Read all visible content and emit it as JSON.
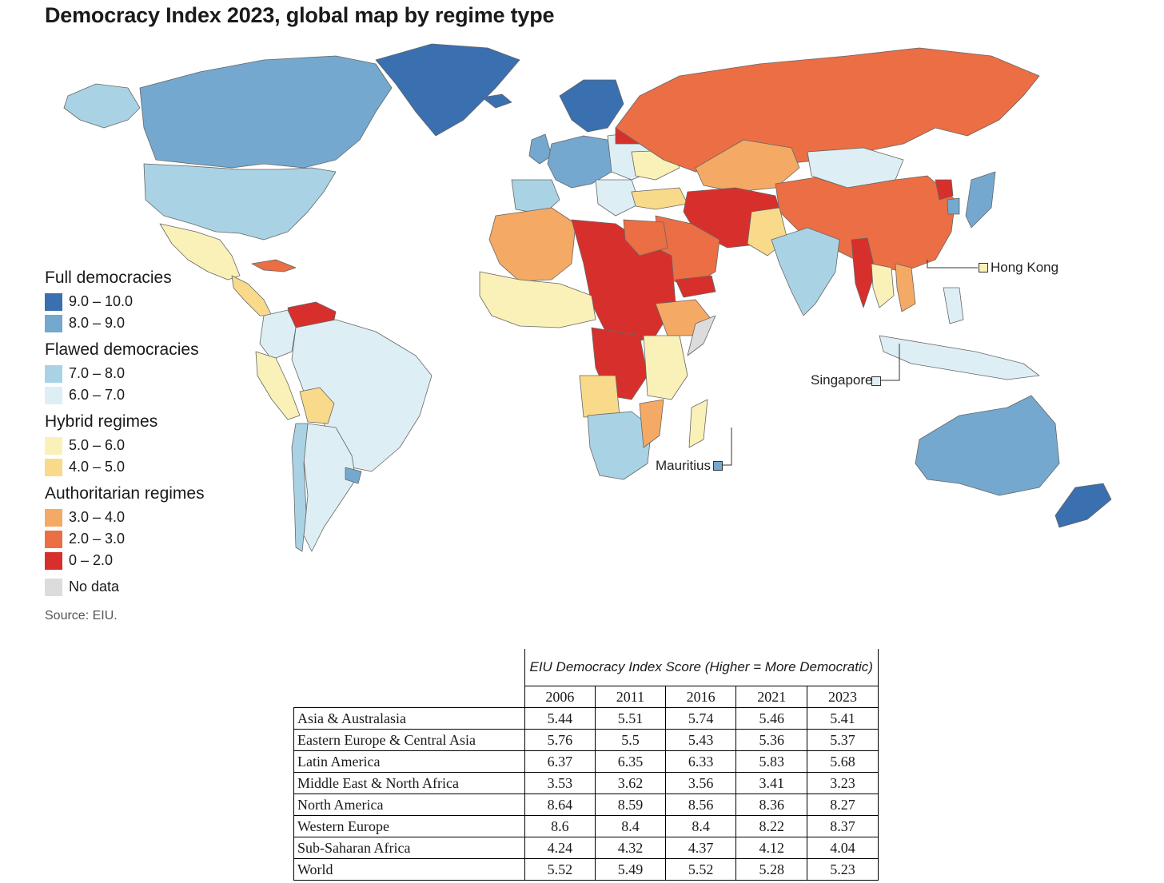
{
  "title": "Democracy Index 2023, global map by regime type",
  "legend": {
    "groups": [
      {
        "label": "Full democracies",
        "items": [
          {
            "label": "9.0 – 10.0",
            "color": "#3a6fb0"
          },
          {
            "label": "8.0 – 9.0",
            "color": "#74a8cf"
          }
        ]
      },
      {
        "label": "Flawed democracies",
        "items": [
          {
            "label": "7.0 – 8.0",
            "color": "#a9d3e4"
          },
          {
            "label": "6.0 – 7.0",
            "color": "#deeef5"
          }
        ]
      },
      {
        "label": "Hybrid regimes",
        "items": [
          {
            "label": "5.0 – 6.0",
            "color": "#faf1b8"
          },
          {
            "label": "4.0 – 5.0",
            "color": "#f9da8b"
          }
        ]
      },
      {
        "label": "Authoritarian regimes",
        "items": [
          {
            "label": "3.0 – 4.0",
            "color": "#f4a965"
          },
          {
            "label": "2.0 – 3.0",
            "color": "#eb6e45"
          },
          {
            "label": "0 – 2.0",
            "color": "#d7302c"
          }
        ]
      }
    ],
    "no_data": {
      "label": "No data",
      "color": "#dcdcdc"
    }
  },
  "source": "Source: EIU.",
  "callouts": {
    "hong_kong": "Hong Kong",
    "singapore": "Singapore",
    "mauritius": "Mauritius"
  },
  "table": {
    "caption": "EIU Democracy Index Score (Higher = More Democratic)",
    "years": [
      "2006",
      "2011",
      "2016",
      "2021",
      "2023"
    ],
    "rows": [
      {
        "region": "Asia & Australasia",
        "values": [
          "5.44",
          "5.51",
          "5.74",
          "5.46",
          "5.41"
        ]
      },
      {
        "region": "Eastern Europe & Central Asia",
        "values": [
          "5.76",
          "5.5",
          "5.43",
          "5.36",
          "5.37"
        ]
      },
      {
        "region": "Latin America",
        "values": [
          "6.37",
          "6.35",
          "6.33",
          "5.83",
          "5.68"
        ]
      },
      {
        "region": "Middle East & North Africa",
        "values": [
          "3.53",
          "3.62",
          "3.56",
          "3.41",
          "3.23"
        ]
      },
      {
        "region": "North America",
        "values": [
          "8.64",
          "8.59",
          "8.56",
          "8.36",
          "8.27"
        ]
      },
      {
        "region": "Western Europe",
        "values": [
          "8.6",
          "8.4",
          "8.4",
          "8.22",
          "8.37"
        ]
      },
      {
        "region": "Sub-Saharan Africa",
        "values": [
          "4.24",
          "4.32",
          "4.37",
          "4.12",
          "4.04"
        ]
      },
      {
        "region": "World",
        "values": [
          "5.52",
          "5.49",
          "5.52",
          "5.28",
          "5.23"
        ]
      }
    ]
  }
}
